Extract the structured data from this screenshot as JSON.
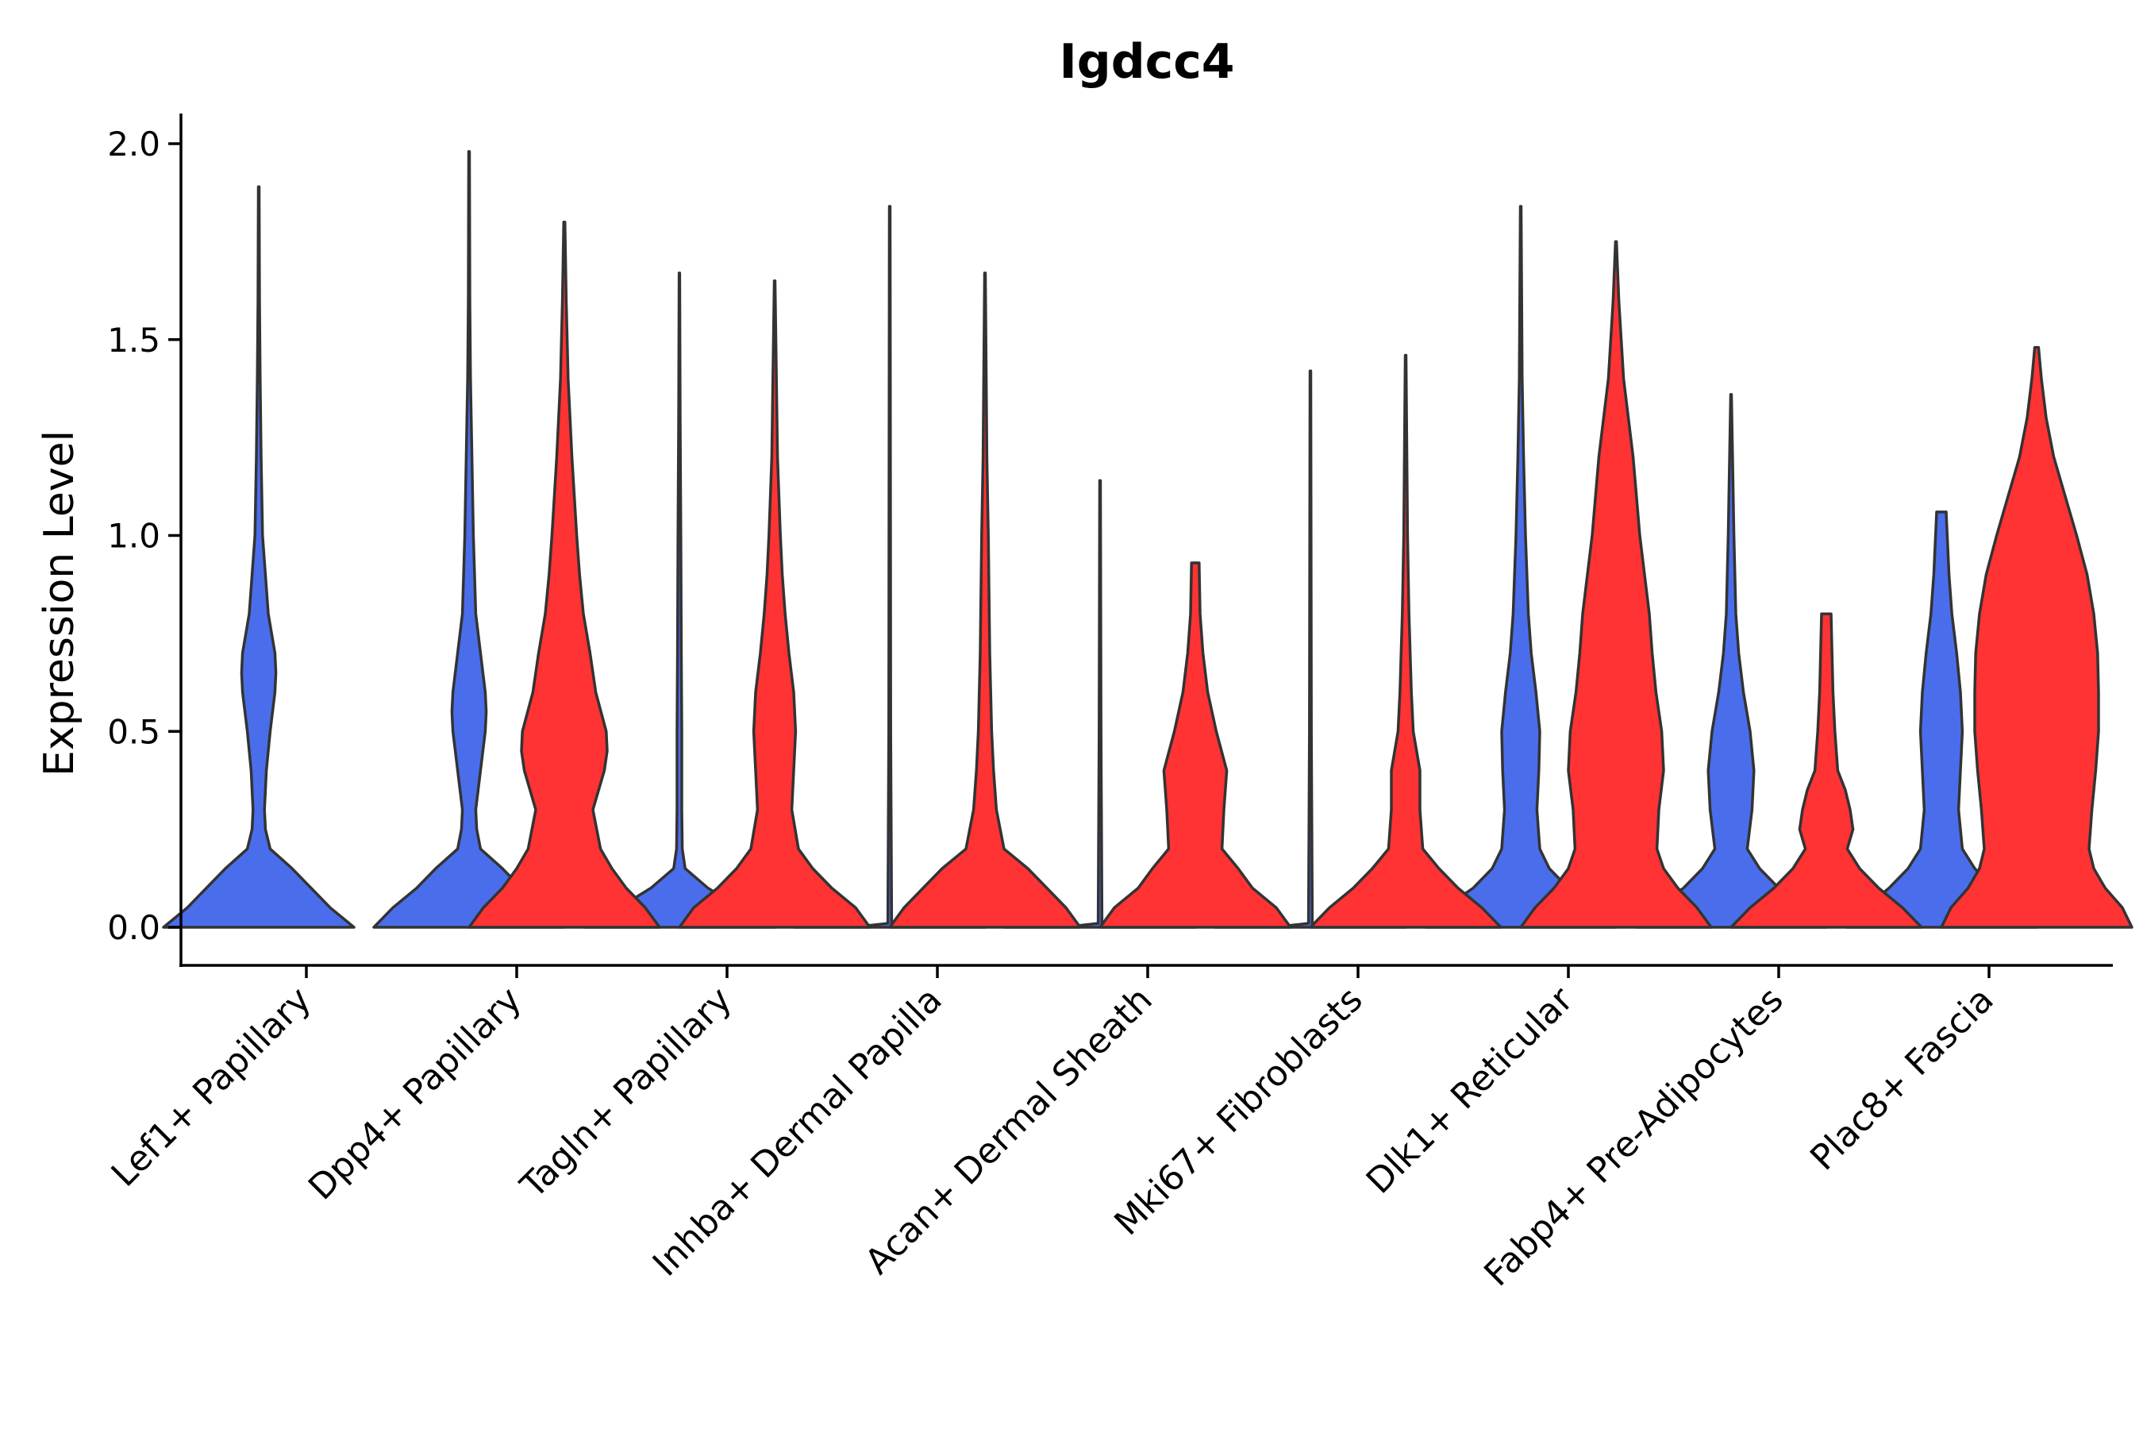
{
  "chart_data": {
    "type": "violin",
    "title": "Igdcc4",
    "xlabel": "",
    "ylabel": "Expression Level",
    "ylim": [
      -0.1,
      2.08
    ],
    "yticks": [
      "0.0",
      "0.5",
      "1.0",
      "1.5",
      "2.0"
    ],
    "grid": false,
    "legend": "none",
    "split_colors": {
      "group1": "#4A6EEB",
      "group2": "#FF3333"
    },
    "categories": [
      "Lef1+ Papillary",
      "Dpp4+ Papillary",
      "Tagln+ Papillary",
      "Inhba+ Dermal Papilla",
      "Acan+ Dermal Sheath",
      "Mki67+ Fibroblasts",
      "Dlk1+ Reticular",
      "Fabp4+ Pre-Adipocytes",
      "Plac8+ Fascia"
    ],
    "series": [
      {
        "name": "group1",
        "color": "#4A6EEB",
        "violins": [
          {
            "max": 1.89,
            "profile": [
              [
                0,
                1.0
              ],
              [
                0.05,
                0.75
              ],
              [
                0.1,
                0.55
              ],
              [
                0.15,
                0.35
              ],
              [
                0.2,
                0.12
              ],
              [
                0.25,
                0.07
              ],
              [
                0.3,
                0.06
              ],
              [
                0.4,
                0.08
              ],
              [
                0.5,
                0.12
              ],
              [
                0.6,
                0.17
              ],
              [
                0.65,
                0.18
              ],
              [
                0.7,
                0.17
              ],
              [
                0.8,
                0.1
              ],
              [
                0.9,
                0.07
              ],
              [
                1.0,
                0.04
              ],
              [
                1.2,
                0.025
              ],
              [
                1.4,
                0.015
              ],
              [
                1.6,
                0.008
              ],
              [
                1.89,
                0.004
              ]
            ]
          },
          {
            "max": 1.98,
            "profile": [
              [
                0,
                1.0
              ],
              [
                0.05,
                0.8
              ],
              [
                0.1,
                0.55
              ],
              [
                0.15,
                0.35
              ],
              [
                0.2,
                0.12
              ],
              [
                0.25,
                0.08
              ],
              [
                0.3,
                0.07
              ],
              [
                0.4,
                0.12
              ],
              [
                0.5,
                0.17
              ],
              [
                0.55,
                0.18
              ],
              [
                0.6,
                0.17
              ],
              [
                0.7,
                0.12
              ],
              [
                0.8,
                0.07
              ],
              [
                1.0,
                0.045
              ],
              [
                1.2,
                0.03
              ],
              [
                1.4,
                0.015
              ],
              [
                1.6,
                0.008
              ],
              [
                1.98,
                0.004
              ]
            ]
          },
          {
            "max": 1.67,
            "profile": [
              [
                0,
                1.0
              ],
              [
                0.03,
                0.8
              ],
              [
                0.07,
                0.5
              ],
              [
                0.1,
                0.3
              ],
              [
                0.15,
                0.06
              ],
              [
                0.2,
                0.03
              ],
              [
                0.3,
                0.025
              ],
              [
                0.5,
                0.025
              ],
              [
                0.7,
                0.02
              ],
              [
                1.0,
                0.015
              ],
              [
                1.3,
                0.008
              ],
              [
                1.67,
                0.003
              ]
            ]
          },
          {
            "max": 1.84,
            "profile": [
              [
                0,
                1.0
              ],
              [
                0.005,
                0.2
              ],
              [
                0.01,
                0.02
              ],
              [
                0.5,
                0.01
              ],
              [
                1.0,
                0.008
              ],
              [
                1.84,
                0.004
              ]
            ]
          },
          {
            "max": 1.14,
            "profile": [
              [
                0,
                1.0
              ],
              [
                0.005,
                0.2
              ],
              [
                0.01,
                0.02
              ],
              [
                0.5,
                0.01
              ],
              [
                1.14,
                0.004
              ]
            ]
          },
          {
            "max": 1.42,
            "profile": [
              [
                0,
                1.0
              ],
              [
                0.005,
                0.2
              ],
              [
                0.01,
                0.02
              ],
              [
                0.5,
                0.01
              ],
              [
                1.42,
                0.004
              ]
            ]
          },
          {
            "max": 1.84,
            "profile": [
              [
                0,
                1.0
              ],
              [
                0.05,
                0.8
              ],
              [
                0.1,
                0.5
              ],
              [
                0.15,
                0.3
              ],
              [
                0.2,
                0.2
              ],
              [
                0.3,
                0.17
              ],
              [
                0.4,
                0.19
              ],
              [
                0.5,
                0.2
              ],
              [
                0.6,
                0.16
              ],
              [
                0.7,
                0.11
              ],
              [
                0.8,
                0.08
              ],
              [
                1.0,
                0.05
              ],
              [
                1.2,
                0.03
              ],
              [
                1.4,
                0.015
              ],
              [
                1.84,
                0.004
              ]
            ]
          },
          {
            "max": 1.36,
            "profile": [
              [
                0,
                1.0
              ],
              [
                0.05,
                0.8
              ],
              [
                0.1,
                0.5
              ],
              [
                0.15,
                0.3
              ],
              [
                0.2,
                0.17
              ],
              [
                0.3,
                0.22
              ],
              [
                0.4,
                0.24
              ],
              [
                0.5,
                0.2
              ],
              [
                0.6,
                0.13
              ],
              [
                0.7,
                0.08
              ],
              [
                0.8,
                0.05
              ],
              [
                1.0,
                0.03
              ],
              [
                1.36,
                0.004
              ]
            ]
          },
          {
            "max": 1.06,
            "profile": [
              [
                0,
                1.0
              ],
              [
                0.05,
                0.8
              ],
              [
                0.1,
                0.55
              ],
              [
                0.15,
                0.35
              ],
              [
                0.2,
                0.22
              ],
              [
                0.3,
                0.18
              ],
              [
                0.4,
                0.2
              ],
              [
                0.5,
                0.22
              ],
              [
                0.6,
                0.2
              ],
              [
                0.7,
                0.16
              ],
              [
                0.8,
                0.11
              ],
              [
                0.9,
                0.08
              ],
              [
                1.06,
                0.05
              ]
            ]
          }
        ]
      },
      {
        "name": "group2",
        "color": "#FF3333",
        "violins": [
          {
            "max": 0,
            "profile": []
          },
          {
            "max": 1.8,
            "profile": [
              [
                0,
                1.0
              ],
              [
                0.05,
                0.85
              ],
              [
                0.1,
                0.65
              ],
              [
                0.15,
                0.5
              ],
              [
                0.2,
                0.38
              ],
              [
                0.3,
                0.3
              ],
              [
                0.4,
                0.42
              ],
              [
                0.45,
                0.45
              ],
              [
                0.5,
                0.44
              ],
              [
                0.6,
                0.33
              ],
              [
                0.7,
                0.27
              ],
              [
                0.8,
                0.2
              ],
              [
                0.9,
                0.16
              ],
              [
                1.0,
                0.13
              ],
              [
                1.2,
                0.08
              ],
              [
                1.4,
                0.04
              ],
              [
                1.6,
                0.02
              ],
              [
                1.8,
                0.006
              ]
            ]
          },
          {
            "max": 1.65,
            "profile": [
              [
                0,
                1.0
              ],
              [
                0.05,
                0.85
              ],
              [
                0.1,
                0.6
              ],
              [
                0.15,
                0.4
              ],
              [
                0.2,
                0.25
              ],
              [
                0.3,
                0.18
              ],
              [
                0.4,
                0.2
              ],
              [
                0.5,
                0.22
              ],
              [
                0.6,
                0.2
              ],
              [
                0.7,
                0.15
              ],
              [
                0.8,
                0.11
              ],
              [
                0.9,
                0.08
              ],
              [
                1.0,
                0.06
              ],
              [
                1.2,
                0.03
              ],
              [
                1.65,
                0.004
              ]
            ]
          },
          {
            "max": 1.67,
            "profile": [
              [
                0,
                1.0
              ],
              [
                0.05,
                0.85
              ],
              [
                0.1,
                0.65
              ],
              [
                0.15,
                0.45
              ],
              [
                0.2,
                0.2
              ],
              [
                0.3,
                0.12
              ],
              [
                0.4,
                0.09
              ],
              [
                0.5,
                0.07
              ],
              [
                0.7,
                0.05
              ],
              [
                1.0,
                0.035
              ],
              [
                1.2,
                0.02
              ],
              [
                1.67,
                0.004
              ]
            ]
          },
          {
            "max": 0.93,
            "profile": [
              [
                0,
                1.0
              ],
              [
                0.05,
                0.85
              ],
              [
                0.1,
                0.6
              ],
              [
                0.15,
                0.45
              ],
              [
                0.2,
                0.28
              ],
              [
                0.3,
                0.3
              ],
              [
                0.4,
                0.33
              ],
              [
                0.5,
                0.22
              ],
              [
                0.6,
                0.13
              ],
              [
                0.7,
                0.08
              ],
              [
                0.8,
                0.05
              ],
              [
                0.93,
                0.04
              ]
            ]
          },
          {
            "max": 1.46,
            "profile": [
              [
                0,
                1.0
              ],
              [
                0.05,
                0.8
              ],
              [
                0.1,
                0.55
              ],
              [
                0.15,
                0.35
              ],
              [
                0.2,
                0.18
              ],
              [
                0.3,
                0.15
              ],
              [
                0.4,
                0.15
              ],
              [
                0.5,
                0.08
              ],
              [
                0.6,
                0.06
              ],
              [
                0.8,
                0.035
              ],
              [
                1.0,
                0.02
              ],
              [
                1.46,
                0.004
              ]
            ]
          },
          {
            "max": 1.75,
            "profile": [
              [
                0,
                1.0
              ],
              [
                0.05,
                0.85
              ],
              [
                0.1,
                0.65
              ],
              [
                0.15,
                0.5
              ],
              [
                0.2,
                0.43
              ],
              [
                0.3,
                0.45
              ],
              [
                0.4,
                0.5
              ],
              [
                0.5,
                0.48
              ],
              [
                0.6,
                0.42
              ],
              [
                0.7,
                0.38
              ],
              [
                0.8,
                0.35
              ],
              [
                0.9,
                0.3
              ],
              [
                1.0,
                0.25
              ],
              [
                1.2,
                0.18
              ],
              [
                1.4,
                0.08
              ],
              [
                1.6,
                0.03
              ],
              [
                1.75,
                0.005
              ]
            ]
          },
          {
            "max": 0.8,
            "profile": [
              [
                0,
                1.0
              ],
              [
                0.05,
                0.8
              ],
              [
                0.1,
                0.55
              ],
              [
                0.15,
                0.35
              ],
              [
                0.2,
                0.22
              ],
              [
                0.25,
                0.28
              ],
              [
                0.3,
                0.25
              ],
              [
                0.35,
                0.2
              ],
              [
                0.4,
                0.12
              ],
              [
                0.5,
                0.09
              ],
              [
                0.6,
                0.07
              ],
              [
                0.7,
                0.06
              ],
              [
                0.8,
                0.05
              ]
            ]
          },
          {
            "max": 1.48,
            "profile": [
              [
                0,
                1.0
              ],
              [
                0.05,
                0.9
              ],
              [
                0.1,
                0.72
              ],
              [
                0.15,
                0.6
              ],
              [
                0.2,
                0.55
              ],
              [
                0.3,
                0.58
              ],
              [
                0.4,
                0.62
              ],
              [
                0.5,
                0.65
              ],
              [
                0.6,
                0.65
              ],
              [
                0.7,
                0.64
              ],
              [
                0.8,
                0.6
              ],
              [
                0.9,
                0.53
              ],
              [
                1.0,
                0.42
              ],
              [
                1.1,
                0.3
              ],
              [
                1.2,
                0.18
              ],
              [
                1.3,
                0.1
              ],
              [
                1.4,
                0.05
              ],
              [
                1.48,
                0.02
              ]
            ]
          }
        ]
      }
    ]
  }
}
